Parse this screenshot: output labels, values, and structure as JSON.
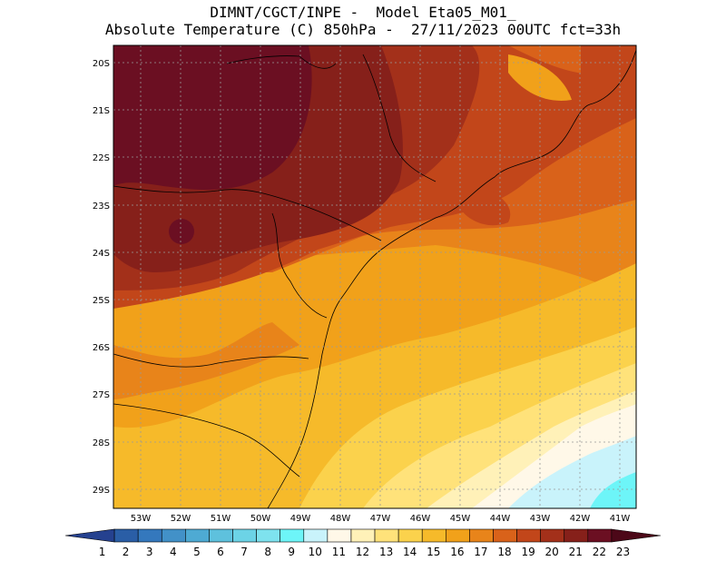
{
  "header": {
    "line1": "DIMNT/CGCT/INPE -  Model Eta05_M01_",
    "line2": "Absolute Temperature (C) 850hPa -  27/11/2023 00UTC fct=33h"
  },
  "map": {
    "lat_labels": [
      "20S",
      "21S",
      "22S",
      "23S",
      "24S",
      "25S",
      "26S",
      "27S",
      "28S",
      "29S"
    ],
    "lon_labels": [
      "53W",
      "52W",
      "51W",
      "50W",
      "49W",
      "48W",
      "47W",
      "46W",
      "45W",
      "44W",
      "43W",
      "42W",
      "41W"
    ],
    "grid": true
  },
  "colorbar": {
    "labels": [
      "1",
      "2",
      "3",
      "4",
      "5",
      "6",
      "7",
      "8",
      "9",
      "10",
      "11",
      "12",
      "13",
      "14",
      "15",
      "16",
      "17",
      "18",
      "19",
      "20",
      "21",
      "22",
      "23"
    ],
    "colors": [
      "#25418f",
      "#2a5ea6",
      "#3478bd",
      "#4291c8",
      "#4eaad3",
      "#5ec1dd",
      "#6cd3e6",
      "#7ee2ee",
      "#6df5f8",
      "#c9f3fb",
      "#fff8e8",
      "#fff1b8",
      "#ffe27a",
      "#fbd24c",
      "#f6ba2a",
      "#f1a11a",
      "#e8841a",
      "#d9621a",
      "#c2461a",
      "#a3301a",
      "#86201a",
      "#6b0f22",
      "#4c0818"
    ]
  }
}
